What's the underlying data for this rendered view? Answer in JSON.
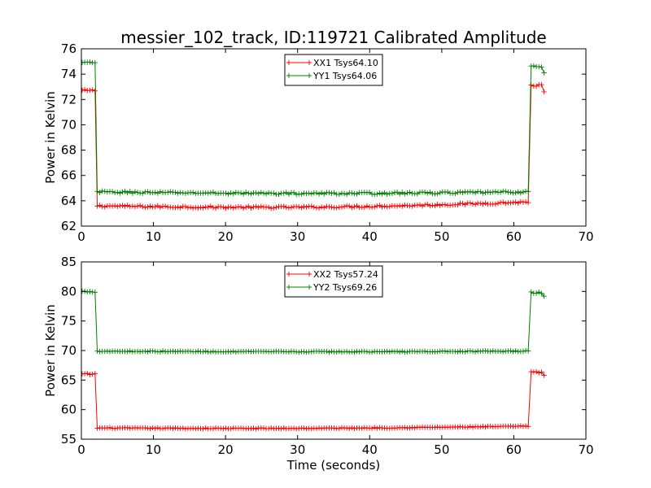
{
  "figure_title": "messier_102_track, ID:119721 Calibrated Amplitude",
  "colors": {
    "red": "#ff0000",
    "green": "#008000",
    "axis": "#000000",
    "background": "#ffffff"
  },
  "chart_data": [
    {
      "type": "line",
      "title": "messier_102_track, ID:119721 Calibrated Amplitude",
      "xlabel": "",
      "ylabel": "Power in Kelvin",
      "xlim": [
        0,
        70
      ],
      "ylim": [
        62,
        76
      ],
      "xticks": [
        0,
        10,
        20,
        30,
        40,
        50,
        60,
        70
      ],
      "yticks": [
        62,
        64,
        66,
        68,
        70,
        72,
        74,
        76
      ],
      "grid": false,
      "legend_position": "top-center",
      "marker": "plus",
      "series": [
        {
          "name": "XX1 Tsys64.10",
          "color": "#ff0000",
          "segments": [
            {
              "x_start": 0.1,
              "x_end": 1.9,
              "mean": 72.7,
              "noise": 0.08
            },
            {
              "x_start": 2.2,
              "x_end": 62.0,
              "y_start": 63.6,
              "y_end": 63.9,
              "sag": 0.25,
              "noise": 0.08
            },
            {
              "x_start": 62.4,
              "x_end": 64.2,
              "mean": 73.1,
              "noise": 0.1,
              "end_y": 72.6
            }
          ]
        },
        {
          "name": "YY1 Tsys64.06",
          "color": "#008000",
          "segments": [
            {
              "x_start": 0.1,
              "x_end": 1.9,
              "mean": 74.9,
              "noise": 0.08
            },
            {
              "x_start": 2.2,
              "x_end": 62.0,
              "y_start": 64.7,
              "y_end": 64.7,
              "sag": 0.12,
              "noise": 0.08
            },
            {
              "x_start": 62.4,
              "x_end": 64.2,
              "mean": 74.6,
              "noise": 0.1,
              "end_y": 74.1
            }
          ]
        }
      ]
    },
    {
      "type": "line",
      "title": "",
      "xlabel": "Time (seconds)",
      "ylabel": "Power in Kelvin",
      "xlim": [
        0,
        70
      ],
      "ylim": [
        55,
        85
      ],
      "xticks": [
        0,
        10,
        20,
        30,
        40,
        50,
        60,
        70
      ],
      "yticks": [
        55,
        60,
        65,
        70,
        75,
        80,
        85
      ],
      "grid": false,
      "legend_position": "top-center",
      "marker": "plus",
      "series": [
        {
          "name": "XX2 Tsys57.24",
          "color": "#ff0000",
          "segments": [
            {
              "x_start": 0.1,
              "x_end": 1.9,
              "mean": 66.0,
              "noise": 0.15
            },
            {
              "x_start": 2.2,
              "x_end": 62.0,
              "y_start": 56.9,
              "y_end": 57.2,
              "sag": 0.2,
              "noise": 0.08
            },
            {
              "x_start": 62.4,
              "x_end": 64.2,
              "mean": 66.3,
              "noise": 0.15,
              "end_y": 65.8
            }
          ]
        },
        {
          "name": "YY2 Tsys69.26",
          "color": "#008000",
          "segments": [
            {
              "x_start": 0.1,
              "x_end": 1.9,
              "mean": 80.0,
              "noise": 0.15
            },
            {
              "x_start": 2.2,
              "x_end": 62.0,
              "y_start": 69.9,
              "y_end": 69.9,
              "sag": 0.1,
              "noise": 0.08
            },
            {
              "x_start": 62.4,
              "x_end": 64.2,
              "mean": 79.8,
              "noise": 0.15,
              "end_y": 79.2
            }
          ]
        }
      ]
    }
  ]
}
